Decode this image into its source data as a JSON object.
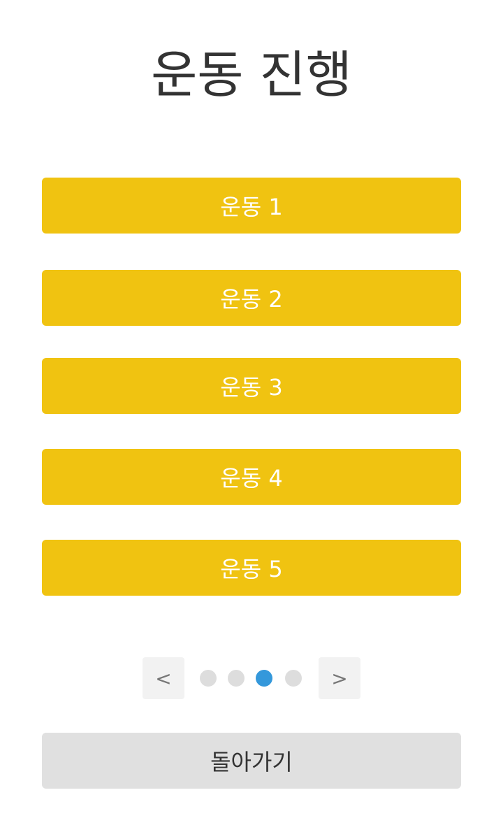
{
  "header": {
    "title": "운동 진행"
  },
  "exercises": [
    {
      "label": "운동 1"
    },
    {
      "label": "운동 2"
    },
    {
      "label": "운동 3"
    },
    {
      "label": "운동 4"
    },
    {
      "label": "운동 5"
    }
  ],
  "pager": {
    "prev_label": "<",
    "next_label": ">",
    "page_count": 4,
    "current_page": 3
  },
  "footer": {
    "back_label": "돌아가기"
  },
  "colors": {
    "exercise_button": "#f0c311",
    "active_dot": "#3498db",
    "inactive_dot": "#dddddd",
    "back_button": "#e0e0e0"
  }
}
